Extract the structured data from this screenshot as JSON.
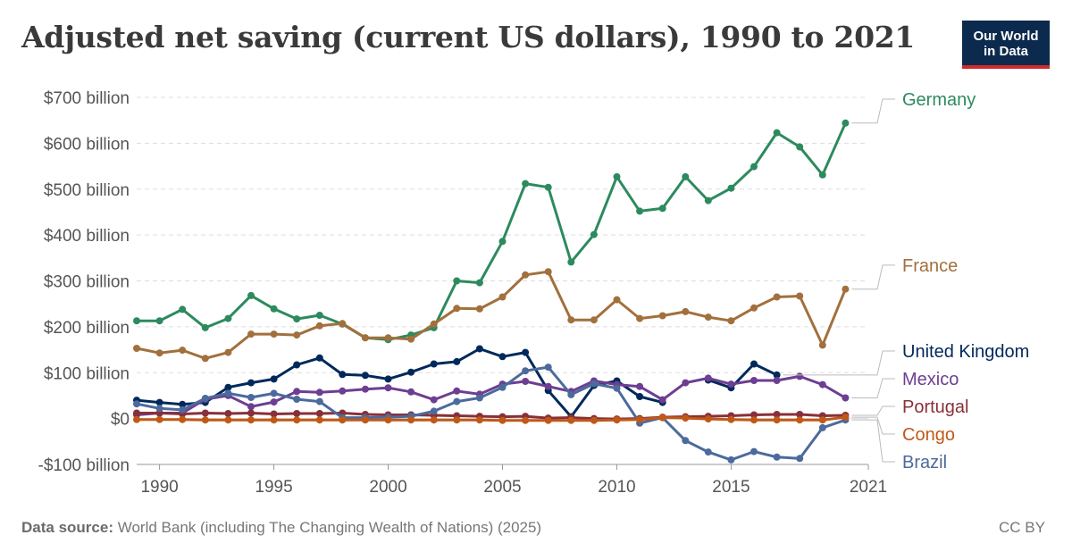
{
  "header": {
    "title": "Adjusted net saving (current US dollars), 1990 to 2021",
    "logo_line1": "Our World",
    "logo_line2": "in Data"
  },
  "footer": {
    "source_label": "Data source:",
    "source_text": "World Bank (including The Changing Wealth of Nations) (2025)",
    "license": "CC BY"
  },
  "chart_data": {
    "type": "line",
    "title": "Adjusted net saving (current US dollars), 1990 to 2021",
    "xlabel": "",
    "ylabel": "",
    "xlim": [
      1989,
      2021
    ],
    "ylim": [
      -100,
      700
    ],
    "x_ticks": [
      {
        "value": 1990,
        "label": "1990"
      },
      {
        "value": 1995,
        "label": "1995"
      },
      {
        "value": 2000,
        "label": "2000"
      },
      {
        "value": 2005,
        "label": "2005"
      },
      {
        "value": 2010,
        "label": "2010"
      },
      {
        "value": 2015,
        "label": "2015"
      },
      {
        "value": 2021,
        "label": "2021"
      }
    ],
    "y_ticks": [
      {
        "value": 700,
        "label": "$700 billion"
      },
      {
        "value": 600,
        "label": "$600 billion"
      },
      {
        "value": 500,
        "label": "$500 billion"
      },
      {
        "value": 400,
        "label": "$400 billion"
      },
      {
        "value": 300,
        "label": "$300 billion"
      },
      {
        "value": 200,
        "label": "$200 billion"
      },
      {
        "value": 100,
        "label": "$100 billion"
      },
      {
        "value": 0,
        "label": "$0"
      },
      {
        "value": -100,
        "label": "-$100 billion"
      }
    ],
    "grid": true,
    "legend": "right, labels at line ends",
    "series": [
      {
        "name": "Germany",
        "color": "#2d8a5e",
        "points": [
          [
            1989,
            213
          ],
          [
            1990,
            213
          ],
          [
            1991,
            238
          ],
          [
            1992,
            198
          ],
          [
            1993,
            218
          ],
          [
            1994,
            268
          ],
          [
            1995,
            239
          ],
          [
            1996,
            217
          ],
          [
            1997,
            225
          ],
          [
            1998,
            206
          ],
          [
            1999,
            176
          ],
          [
            2000,
            172
          ],
          [
            2001,
            182
          ],
          [
            2002,
            198
          ],
          [
            2003,
            300
          ],
          [
            2004,
            296
          ],
          [
            2005,
            386
          ],
          [
            2006,
            512
          ],
          [
            2007,
            504
          ],
          [
            2008,
            341
          ],
          [
            2009,
            401
          ],
          [
            2010,
            527
          ],
          [
            2011,
            452
          ],
          [
            2012,
            458
          ],
          [
            2013,
            527
          ],
          [
            2014,
            475
          ],
          [
            2015,
            502
          ],
          [
            2016,
            549
          ],
          [
            2017,
            623
          ],
          [
            2018,
            592
          ],
          [
            2019,
            531
          ],
          [
            2020,
            644
          ]
        ]
      },
      {
        "name": "France",
        "color": "#a2703d",
        "points": [
          [
            1989,
            153
          ],
          [
            1990,
            143
          ],
          [
            1991,
            149
          ],
          [
            1992,
            131
          ],
          [
            1993,
            144
          ],
          [
            1994,
            184
          ],
          [
            1995,
            184
          ],
          [
            1996,
            182
          ],
          [
            1997,
            202
          ],
          [
            1998,
            207
          ],
          [
            1999,
            176
          ],
          [
            2000,
            176
          ],
          [
            2001,
            173
          ],
          [
            2002,
            206
          ],
          [
            2003,
            240
          ],
          [
            2004,
            239
          ],
          [
            2005,
            265
          ],
          [
            2006,
            313
          ],
          [
            2007,
            320
          ],
          [
            2008,
            215
          ],
          [
            2009,
            215
          ],
          [
            2010,
            259
          ],
          [
            2011,
            218
          ],
          [
            2012,
            224
          ],
          [
            2013,
            233
          ],
          [
            2014,
            221
          ],
          [
            2015,
            213
          ],
          [
            2016,
            241
          ],
          [
            2017,
            265
          ],
          [
            2018,
            267
          ],
          [
            2019,
            160
          ],
          [
            2020,
            282
          ]
        ]
      },
      {
        "name": "United Kingdom",
        "color": "#00295b",
        "points": [
          [
            1989,
            40
          ],
          [
            1990,
            35
          ],
          [
            1991,
            31
          ],
          [
            1992,
            35
          ],
          [
            1993,
            68
          ],
          [
            1994,
            78
          ],
          [
            1995,
            86
          ],
          [
            1996,
            117
          ],
          [
            1997,
            132
          ],
          [
            1998,
            96
          ],
          [
            1999,
            94
          ],
          [
            2000,
            86
          ],
          [
            2001,
            101
          ],
          [
            2002,
            119
          ],
          [
            2003,
            124
          ],
          [
            2004,
            152
          ],
          [
            2005,
            135
          ],
          [
            2006,
            144
          ],
          [
            2007,
            61
          ],
          [
            2008,
            4
          ],
          [
            2009,
            72
          ],
          [
            2010,
            82
          ],
          [
            2011,
            48
          ],
          [
            2012,
            35
          ],
          [
            2013,
            null
          ],
          [
            2014,
            84
          ],
          [
            2015,
            67
          ],
          [
            2016,
            119
          ],
          [
            2017,
            95
          ]
        ]
      },
      {
        "name": "Mexico",
        "color": "#6d3e91",
        "points": [
          [
            1989,
            8
          ],
          [
            1990,
            12
          ],
          [
            1991,
            12
          ],
          [
            1992,
            42
          ],
          [
            1993,
            50
          ],
          [
            1994,
            26
          ],
          [
            1995,
            36
          ],
          [
            1996,
            59
          ],
          [
            1997,
            57
          ],
          [
            1998,
            60
          ],
          [
            1999,
            64
          ],
          [
            2000,
            67
          ],
          [
            2001,
            58
          ],
          [
            2002,
            41
          ],
          [
            2003,
            60
          ],
          [
            2004,
            53
          ],
          [
            2005,
            75
          ],
          [
            2006,
            81
          ],
          [
            2007,
            70
          ],
          [
            2008,
            59
          ],
          [
            2009,
            82
          ],
          [
            2010,
            74
          ],
          [
            2011,
            70
          ],
          [
            2012,
            41
          ],
          [
            2013,
            78
          ],
          [
            2014,
            88
          ],
          [
            2015,
            75
          ],
          [
            2016,
            83
          ],
          [
            2017,
            83
          ],
          [
            2018,
            92
          ],
          [
            2019,
            74
          ],
          [
            2020,
            45
          ]
        ]
      },
      {
        "name": "Portugal",
        "color": "#883039",
        "points": [
          [
            1989,
            12
          ],
          [
            1990,
            12
          ],
          [
            1991,
            10
          ],
          [
            1992,
            12
          ],
          [
            1993,
            11
          ],
          [
            1994,
            12
          ],
          [
            1995,
            10
          ],
          [
            1996,
            11
          ],
          [
            1997,
            11
          ],
          [
            1998,
            12
          ],
          [
            1999,
            9
          ],
          [
            2000,
            8
          ],
          [
            2001,
            8
          ],
          [
            2002,
            7
          ],
          [
            2003,
            6
          ],
          [
            2004,
            5
          ],
          [
            2005,
            4
          ],
          [
            2006,
            5
          ],
          [
            2007,
            1
          ],
          [
            2008,
            2
          ],
          [
            2009,
            0
          ],
          [
            2010,
            -1
          ],
          [
            2011,
            0
          ],
          [
            2012,
            3
          ],
          [
            2013,
            4
          ],
          [
            2014,
            5
          ],
          [
            2015,
            6
          ],
          [
            2016,
            8
          ],
          [
            2017,
            9
          ],
          [
            2018,
            9
          ],
          [
            2019,
            6
          ],
          [
            2020,
            7
          ]
        ]
      },
      {
        "name": "Brazil",
        "color": "#4c6a9c",
        "points": [
          [
            1989,
            32
          ],
          [
            1990,
            22
          ],
          [
            1991,
            19
          ],
          [
            1992,
            44
          ],
          [
            1993,
            55
          ],
          [
            1994,
            46
          ],
          [
            1995,
            55
          ],
          [
            1996,
            42
          ],
          [
            1997,
            37
          ],
          [
            1998,
            2
          ],
          [
            1999,
            2
          ],
          [
            2000,
            3
          ],
          [
            2001,
            5
          ],
          [
            2002,
            16
          ],
          [
            2003,
            37
          ],
          [
            2004,
            45
          ],
          [
            2005,
            68
          ],
          [
            2006,
            104
          ],
          [
            2007,
            112
          ],
          [
            2008,
            52
          ],
          [
            2009,
            76
          ],
          [
            2010,
            66
          ],
          [
            2011,
            -10
          ],
          [
            2012,
            2
          ],
          [
            2013,
            -48
          ],
          [
            2014,
            -73
          ],
          [
            2015,
            -90
          ],
          [
            2016,
            -72
          ],
          [
            2017,
            -84
          ],
          [
            2018,
            -87
          ],
          [
            2019,
            -20
          ],
          [
            2020,
            -3
          ]
        ]
      },
      {
        "name": "Congo",
        "color": "#c05917",
        "points": [
          [
            1989,
            -2
          ],
          [
            1990,
            -2
          ],
          [
            1991,
            -2
          ],
          [
            1992,
            -3
          ],
          [
            1993,
            -3
          ],
          [
            1994,
            -3
          ],
          [
            1995,
            -3
          ],
          [
            1996,
            -3
          ],
          [
            1997,
            -3
          ],
          [
            1998,
            -3
          ],
          [
            1999,
            -3
          ],
          [
            2000,
            -3
          ],
          [
            2001,
            -3
          ],
          [
            2002,
            -3
          ],
          [
            2003,
            -3
          ],
          [
            2004,
            -3
          ],
          [
            2005,
            -4
          ],
          [
            2006,
            -4
          ],
          [
            2007,
            -4
          ],
          [
            2008,
            -4
          ],
          [
            2009,
            -4
          ],
          [
            2010,
            -3
          ],
          [
            2011,
            -2
          ],
          [
            2012,
            2
          ],
          [
            2013,
            1
          ],
          [
            2014,
            -1
          ],
          [
            2015,
            -2
          ],
          [
            2016,
            -3
          ],
          [
            2017,
            -3
          ],
          [
            2018,
            -3
          ],
          [
            2019,
            -3
          ],
          [
            2020,
            3
          ]
        ]
      }
    ]
  }
}
